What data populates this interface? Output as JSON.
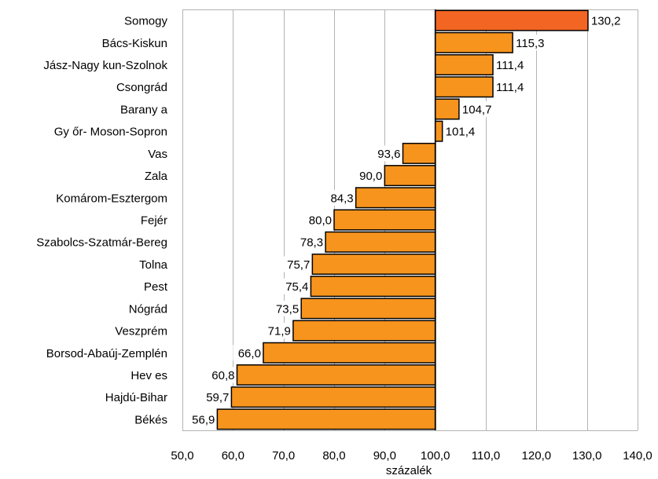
{
  "chart_data": {
    "type": "bar",
    "orientation": "horizontal",
    "baseline": 100,
    "categories": [
      "Somogy",
      "Bács-Kiskun",
      "Jász-Nagy kun-Szolnok",
      "Csongrád",
      "Barany a",
      "Gy őr- Moson-Sopron",
      "Vas",
      "Zala",
      "Komárom-Esztergom",
      "Fejér",
      "Szabolcs-Szatmár-Bereg",
      "Tolna",
      "Pest",
      "Nógrád",
      "Veszprém",
      "Borsod-Abaúj-Zemplén",
      "Hev es",
      "Hajdú-Bihar",
      "Békés"
    ],
    "values": [
      130.2,
      115.3,
      111.4,
      111.4,
      104.7,
      101.4,
      93.6,
      90.0,
      84.3,
      80.0,
      78.3,
      75.7,
      75.4,
      73.5,
      71.9,
      66.0,
      60.8,
      59.7,
      56.9
    ],
    "value_labels": [
      "130,2",
      "115,3",
      "111,4",
      "111,4",
      "104,7",
      "101,4",
      "93,6",
      "90,0",
      "84,3",
      "80,0",
      "78,3",
      "75,7",
      "75,4",
      "73,5",
      "71,9",
      "66,0",
      "60,8",
      "59,7",
      "56,9"
    ],
    "xlim": [
      50,
      140
    ],
    "x_ticks": [
      50,
      60,
      70,
      80,
      90,
      100,
      110,
      120,
      130,
      140
    ],
    "x_tick_labels": [
      "50,0",
      "60,0",
      "70,0",
      "80,0",
      "90,0",
      "100,0",
      "110,0",
      "120,0",
      "130,0",
      "140,0"
    ],
    "xlabel": "százalék",
    "ylabel": "",
    "title": "",
    "grid": "vertical",
    "colors": {
      "bar": "#F7941D",
      "highlight_bar": "#F26522",
      "bar_edge": "#000000",
      "grid": "#b3b3b3"
    },
    "highlight_index": 0
  }
}
